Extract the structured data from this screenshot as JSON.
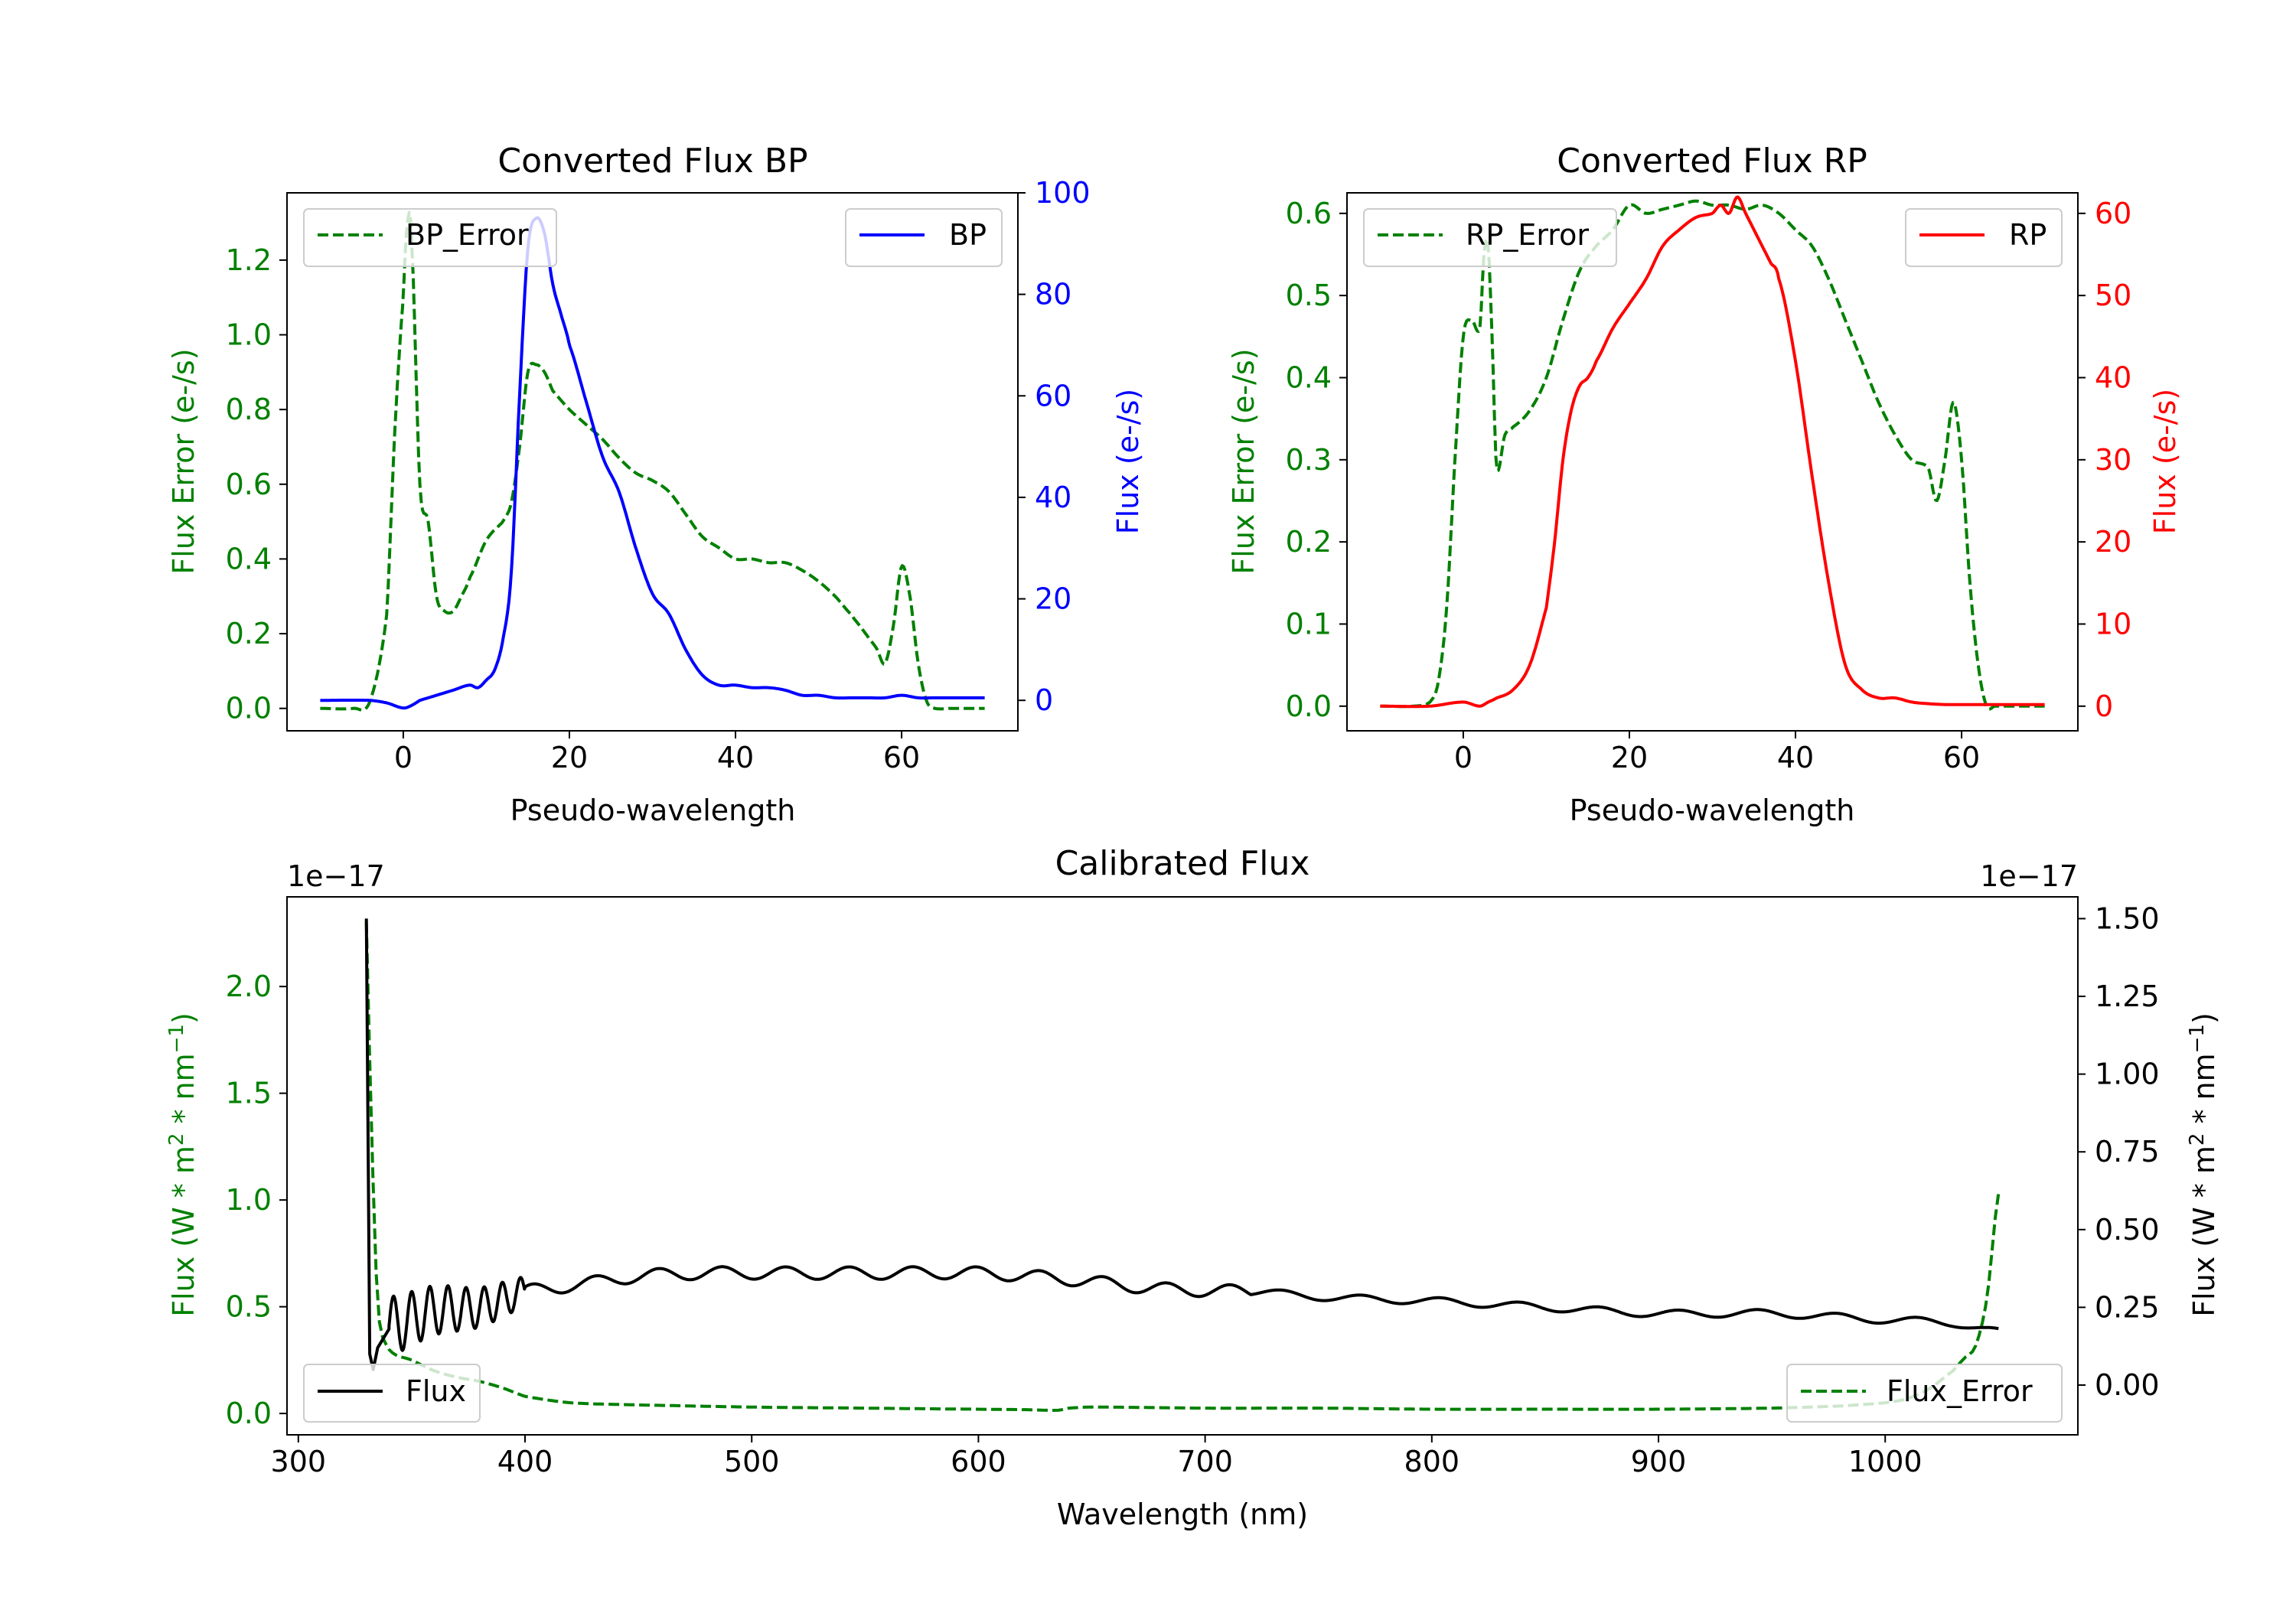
{
  "colors": {
    "bp": "#0000ff",
    "rp": "#ff0000",
    "error": "#008000",
    "flux": "#000000"
  },
  "chart_data": [
    {
      "id": "bp",
      "type": "line",
      "title": "Converted Flux BP",
      "xlabel": "Pseudo-wavelength",
      "ylabel_left": "Flux Error (e-/s)",
      "ylabel_right": "Flux (e-/s)",
      "xlim": [
        -14,
        74
      ],
      "ylim_left": [
        -0.06,
        1.38
      ],
      "ylim_right": [
        -6,
        100
      ],
      "xticks": [
        0,
        20,
        40,
        60
      ],
      "yticks_left": [
        0.0,
        0.2,
        0.4,
        0.6,
        0.8,
        1.0,
        1.2
      ],
      "yticks_right": [
        0,
        20,
        40,
        60,
        80,
        100
      ],
      "legend_left": "BP_Error",
      "legend_right": "BP",
      "series": [
        {
          "name": "BP_Error",
          "axis": "left",
          "style": "dashed",
          "x": [
            -10,
            -6,
            -4,
            -2,
            -1,
            0,
            0.5,
            1,
            2,
            3,
            4,
            5,
            6,
            7,
            8,
            10,
            12,
            13,
            14,
            15,
            16,
            17,
            18,
            20,
            22,
            24,
            26,
            28,
            30,
            32,
            34,
            36,
            38,
            40,
            42,
            44,
            46,
            48,
            50,
            52,
            54,
            55,
            56,
            57,
            58,
            59,
            60,
            61,
            62,
            63,
            64,
            66,
            70
          ],
          "y": [
            0.0,
            0.0,
            0.02,
            0.25,
            0.75,
            1.1,
            1.3,
            1.25,
            0.6,
            0.5,
            0.3,
            0.26,
            0.26,
            0.3,
            0.35,
            0.45,
            0.5,
            0.55,
            0.7,
            0.9,
            0.92,
            0.9,
            0.85,
            0.8,
            0.76,
            0.72,
            0.67,
            0.63,
            0.61,
            0.58,
            0.52,
            0.46,
            0.43,
            0.4,
            0.4,
            0.39,
            0.39,
            0.37,
            0.34,
            0.3,
            0.25,
            0.22,
            0.19,
            0.16,
            0.12,
            0.22,
            0.38,
            0.3,
            0.12,
            0.02,
            0.0,
            0.0,
            0.0
          ]
        },
        {
          "name": "BP",
          "axis": "right",
          "style": "solid",
          "x": [
            -10,
            -4,
            -2,
            0,
            1,
            2,
            4,
            6,
            8,
            9,
            10,
            11,
            12,
            13,
            14,
            15,
            16,
            17,
            18,
            19,
            20,
            22,
            24,
            26,
            28,
            30,
            32,
            34,
            36,
            38,
            40,
            42,
            44,
            46,
            48,
            50,
            52,
            54,
            56,
            58,
            60,
            62,
            64,
            66,
            68,
            70
          ],
          "y": [
            0,
            0,
            -0.5,
            -1.5,
            -1,
            0,
            1,
            2,
            3,
            2.5,
            4,
            6,
            12,
            25,
            60,
            89,
            95,
            92,
            82,
            76,
            70,
            59,
            48,
            41,
            30,
            21,
            17,
            10,
            5,
            3,
            3,
            2.5,
            2.5,
            2,
            1,
            1,
            0.5,
            0.5,
            0.5,
            0.5,
            1,
            0.5,
            0.5,
            0.5,
            0.5,
            0.5
          ]
        }
      ]
    },
    {
      "id": "rp",
      "type": "line",
      "title": "Converted Flux RP",
      "xlabel": "Pseudo-wavelength",
      "ylabel_left": "Flux Error (e-/s)",
      "ylabel_right": "Flux (e-/s)",
      "xlim": [
        -14,
        74
      ],
      "ylim_left": [
        -0.03,
        0.625
      ],
      "ylim_right": [
        -3,
        62.5
      ],
      "xticks": [
        0,
        20,
        40,
        60
      ],
      "yticks_left": [
        0.0,
        0.1,
        0.2,
        0.3,
        0.4,
        0.5,
        0.6
      ],
      "yticks_right": [
        0,
        10,
        20,
        30,
        40,
        50,
        60
      ],
      "legend_left": "RP_Error",
      "legend_right": "RP",
      "series": [
        {
          "name": "RP_Error",
          "axis": "left",
          "style": "dashed",
          "x": [
            -10,
            -6,
            -4,
            -3,
            -2,
            -1,
            0,
            1,
            2,
            2.5,
            3,
            3.5,
            4,
            5,
            6,
            8,
            10,
            12,
            14,
            16,
            18,
            20,
            22,
            24,
            26,
            28,
            30,
            32,
            34,
            36,
            38,
            40,
            42,
            44,
            46,
            48,
            50,
            52,
            54,
            56,
            57,
            58,
            59,
            60,
            61,
            62,
            63,
            64,
            66,
            70
          ],
          "y": [
            0.0,
            0.0,
            0.005,
            0.03,
            0.12,
            0.3,
            0.45,
            0.47,
            0.46,
            0.55,
            0.56,
            0.44,
            0.29,
            0.33,
            0.34,
            0.36,
            0.4,
            0.47,
            0.53,
            0.56,
            0.58,
            0.61,
            0.6,
            0.605,
            0.61,
            0.615,
            0.61,
            0.61,
            0.605,
            0.61,
            0.6,
            0.58,
            0.56,
            0.52,
            0.47,
            0.42,
            0.37,
            0.33,
            0.3,
            0.29,
            0.25,
            0.3,
            0.37,
            0.3,
            0.15,
            0.05,
            0.0,
            0.0,
            0.0,
            0.0
          ]
        },
        {
          "name": "RP",
          "axis": "right",
          "style": "solid",
          "x": [
            -10,
            -4,
            0,
            2,
            3,
            4,
            6,
            8,
            10,
            11,
            12,
            13,
            14,
            15,
            16,
            18,
            20,
            22,
            24,
            26,
            28,
            30,
            31,
            32,
            33,
            34,
            35,
            36,
            37,
            38,
            40,
            42,
            44,
            46,
            48,
            50,
            52,
            54,
            56,
            58,
            60,
            62,
            64,
            66,
            70
          ],
          "y": [
            0,
            0,
            0.5,
            0,
            0.5,
            1,
            2,
            5,
            12,
            20,
            30,
            36,
            39,
            40,
            42,
            46,
            49,
            52,
            56,
            58,
            59.5,
            60,
            61,
            60,
            62,
            60,
            58,
            56,
            54,
            52,
            42,
            28,
            15,
            5,
            2,
            1,
            1,
            0.5,
            0.3,
            0.2,
            0.2,
            0.2,
            0.2,
            0.2,
            0.2
          ]
        }
      ]
    },
    {
      "id": "cal",
      "type": "line",
      "title": "Calibrated Flux",
      "xlabel": "Wavelength (nm)",
      "ylabel_left": "Flux (W * m",
      "ylabel_right": "Flux (W * m",
      "ylabel_mid": " * nm",
      "ylabel_sup_2": "2",
      "ylabel_sup_neg1": "−1",
      "ylabel_close": ")",
      "offset_left": "1e−17",
      "offset_right": "1e−17",
      "xlim": [
        295,
        1085
      ],
      "ylim_left": [
        -0.1,
        2.42
      ],
      "ylim_right": [
        -0.16,
        1.57
      ],
      "xticks": [
        300,
        400,
        500,
        600,
        700,
        800,
        900,
        1000
      ],
      "yticks_left": [
        0.0,
        0.5,
        1.0,
        1.5,
        2.0
      ],
      "yticks_left_labels": [
        "0.0",
        "0.5",
        "1.0",
        "1.5",
        "2.0"
      ],
      "yticks_right": [
        0.0,
        0.25,
        0.5,
        0.75,
        1.0,
        1.25,
        1.5
      ],
      "yticks_right_labels": [
        "0.00",
        "0.25",
        "0.50",
        "0.75",
        "1.00",
        "1.25",
        "1.50"
      ],
      "legend_left": "Flux",
      "legend_right": "Flux_Error",
      "series": [
        {
          "name": "Flux_Error",
          "axis": "left",
          "style": "dashed",
          "x": [
            330,
            332,
            335,
            340,
            350,
            360,
            370,
            380,
            390,
            400,
            420,
            450,
            500,
            550,
            600,
            620,
            635,
            640,
            650,
            700,
            750,
            800,
            850,
            900,
            950,
            980,
            1000,
            1010,
            1020,
            1030,
            1035,
            1040,
            1045,
            1050
          ],
          "y": [
            2.3,
            1.4,
            0.5,
            0.3,
            0.25,
            0.2,
            0.17,
            0.15,
            0.12,
            0.08,
            0.05,
            0.04,
            0.03,
            0.025,
            0.02,
            0.018,
            0.015,
            0.025,
            0.03,
            0.025,
            0.025,
            0.02,
            0.02,
            0.02,
            0.025,
            0.035,
            0.05,
            0.07,
            0.12,
            0.2,
            0.26,
            0.32,
            0.55,
            1.03
          ]
        },
        {
          "name": "Flux",
          "axis": "right",
          "style": "solid",
          "base_x": [
            330,
            340,
            360,
            380,
            400,
            420,
            450,
            480,
            520,
            560,
            600,
            640,
            680,
            720,
            760,
            800,
            850,
            900,
            950,
            1000,
            1030,
            1050
          ],
          "base_y": [
            0.2,
            0.19,
            0.24,
            0.25,
            0.3,
            0.32,
            0.35,
            0.36,
            0.36,
            0.36,
            0.36,
            0.34,
            0.31,
            0.3,
            0.28,
            0.27,
            0.25,
            0.23,
            0.23,
            0.21,
            0.2,
            0.17
          ],
          "spike": [
            [
              330,
              1.5
            ],
            [
              331.5,
              0.1
            ],
            [
              333,
              0.05
            ],
            [
              335,
              0.12
            ],
            [
              340,
              0.18
            ]
          ]
        }
      ]
    }
  ]
}
